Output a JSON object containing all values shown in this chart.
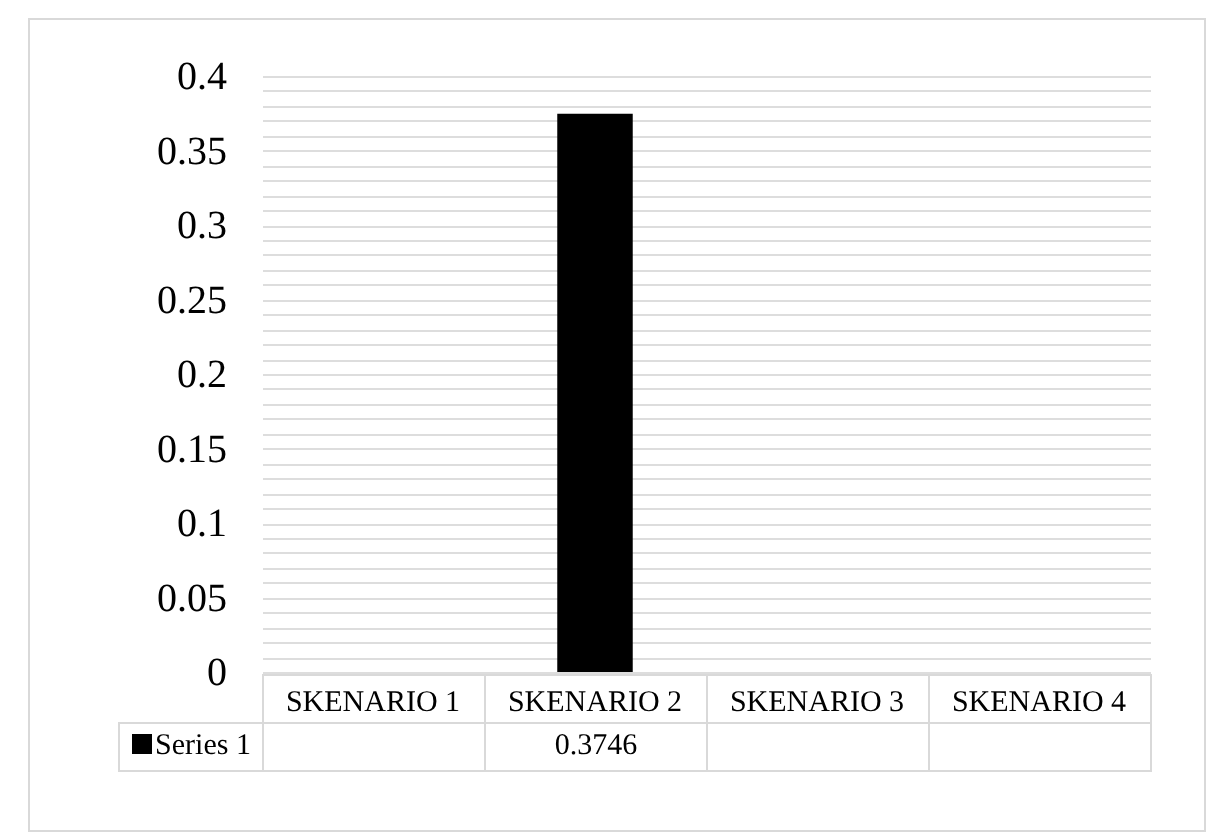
{
  "chart_data": {
    "type": "bar",
    "categories": [
      "SKENARIO 1",
      "SKENARIO 2",
      "SKENARIO 3",
      "SKENARIO 4"
    ],
    "series": [
      {
        "name": "Series 1",
        "color": "#000000",
        "values": [
          null,
          0.3746,
          null,
          null
        ],
        "value_labels": [
          null,
          "0.3746",
          null,
          null
        ]
      }
    ],
    "ylim": [
      0,
      0.4
    ],
    "yticks": [
      0,
      0.05,
      0.1,
      0.15,
      0.2,
      0.25,
      0.3,
      0.35,
      0.4
    ],
    "grid": true,
    "legend": "bottom"
  }
}
